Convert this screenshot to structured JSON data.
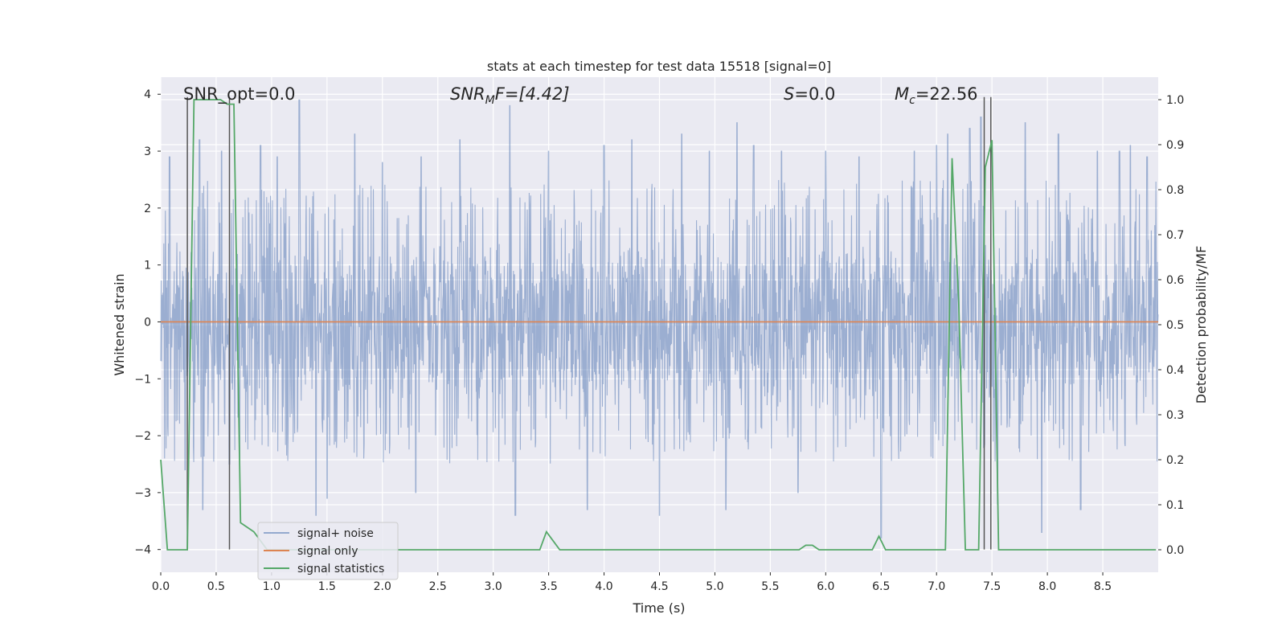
{
  "chart_data": {
    "type": "line",
    "title": "stats at each timestep for test data 15518 [signal=0]",
    "xlabel": "Time (s)",
    "ylabel_left": "Whitened strain",
    "ylabel_right": "Detection probability/MF",
    "xlim": [
      0,
      9
    ],
    "ylim_left": [
      -4.4,
      4.3
    ],
    "ylim_right": [
      -0.05,
      1.05
    ],
    "xticks": [
      0.0,
      0.5,
      1.0,
      1.5,
      2.0,
      2.5,
      3.0,
      3.5,
      4.0,
      4.5,
      5.0,
      5.5,
      6.0,
      6.5,
      7.0,
      7.5,
      8.0,
      8.5
    ],
    "xtick_labels": [
      "0.0",
      "0.5",
      "1.0",
      "1.5",
      "2.0",
      "2.5",
      "3.0",
      "3.5",
      "4.0",
      "4.5",
      "5.0",
      "5.5",
      "6.0",
      "6.5",
      "7.0",
      "7.5",
      "8.0",
      "8.5"
    ],
    "yticks_left": [
      4,
      3,
      2,
      1,
      0,
      -1,
      -2,
      -3,
      -4
    ],
    "ytick_labels_left": [
      "4",
      "3",
      "2",
      "1",
      "0",
      "−1",
      "−2",
      "−3",
      "−4"
    ],
    "yticks_right": [
      1.0,
      0.9,
      0.8,
      0.7,
      0.6,
      0.5,
      0.4,
      0.3,
      0.2,
      0.1,
      0.0
    ],
    "ytick_labels_right": [
      "1.0",
      "0.9",
      "0.8",
      "0.7",
      "0.6",
      "0.5",
      "0.4",
      "0.3",
      "0.2",
      "0.1",
      "0.0"
    ],
    "grid": true,
    "legend_position": "lower-left",
    "annotations": {
      "snr_opt": "SNR_opt=0.0",
      "snr_mf_prefix": "SNR",
      "snr_mf_sub": "M",
      "snr_mf_suffix": "F=[4.42]",
      "s_prefix": "S",
      "s_suffix": "=0.0",
      "mc_prefix": "M",
      "mc_sub": "c",
      "mc_suffix": "=22.56"
    },
    "colors": {
      "background": "#eaeaf2",
      "grid": "#ffffff",
      "noise": "#4c72b0",
      "signal_only": "#dd8452",
      "statistics": "#55a868",
      "markers": "#555555"
    },
    "series": [
      {
        "name": "signal+ noise",
        "axis": "left",
        "style": "dense noise trace",
        "noise_envelope_typical": [
          -1.6,
          1.6
        ],
        "peaks": [
          [
            0.08,
            2.9
          ],
          [
            0.22,
            -2.6
          ],
          [
            0.35,
            3.2
          ],
          [
            0.38,
            -3.3
          ],
          [
            0.55,
            3.0
          ],
          [
            0.62,
            -2.5
          ],
          [
            0.9,
            3.1
          ],
          [
            1.05,
            2.9
          ],
          [
            1.25,
            3.9
          ],
          [
            1.4,
            -3.4
          ],
          [
            1.5,
            -3.1
          ],
          [
            1.75,
            3.3
          ],
          [
            2.0,
            2.8
          ],
          [
            2.3,
            -3.0
          ],
          [
            2.35,
            2.9
          ],
          [
            2.7,
            3.2
          ],
          [
            3.15,
            3.8
          ],
          [
            3.2,
            -3.4
          ],
          [
            3.5,
            3.0
          ],
          [
            3.85,
            -3.3
          ],
          [
            4.0,
            3.1
          ],
          [
            4.25,
            3.2
          ],
          [
            4.5,
            -3.4
          ],
          [
            4.7,
            3.3
          ],
          [
            4.95,
            3.0
          ],
          [
            5.1,
            -3.3
          ],
          [
            5.2,
            3.5
          ],
          [
            5.35,
            3.1
          ],
          [
            5.6,
            3.0
          ],
          [
            5.75,
            -3.0
          ],
          [
            6.0,
            3.0
          ],
          [
            6.3,
            2.9
          ],
          [
            6.5,
            -3.8
          ],
          [
            6.8,
            3.0
          ],
          [
            7.0,
            3.1
          ],
          [
            7.1,
            3.3
          ],
          [
            7.3,
            3.4
          ],
          [
            7.4,
            3.6
          ],
          [
            7.55,
            -3.2
          ],
          [
            7.8,
            3.5
          ],
          [
            7.95,
            -3.7
          ],
          [
            8.1,
            3.3
          ],
          [
            8.3,
            -3.3
          ],
          [
            8.45,
            3.0
          ],
          [
            8.65,
            3.0
          ],
          [
            8.75,
            3.1
          ],
          [
            8.9,
            2.9
          ]
        ]
      },
      {
        "name": "signal only",
        "axis": "left",
        "x": [
          0.0,
          9.0
        ],
        "y": [
          0.0,
          0.0
        ]
      },
      {
        "name": "signal statistics",
        "axis": "right",
        "x": [
          0.0,
          0.06,
          0.12,
          0.18,
          0.24,
          0.3,
          0.36,
          0.42,
          0.48,
          0.54,
          0.6,
          0.66,
          0.72,
          0.78,
          0.84,
          0.9,
          0.96,
          1.02,
          3.36,
          3.42,
          3.48,
          3.54,
          3.6,
          3.66,
          5.76,
          5.82,
          5.88,
          5.94,
          6.42,
          6.48,
          6.54,
          6.6,
          7.08,
          7.14,
          7.2,
          7.26,
          7.32,
          7.38,
          7.44,
          7.5,
          7.56,
          7.62,
          8.98
        ],
        "y": [
          0.2,
          0.0,
          0.0,
          0.0,
          0.0,
          1.0,
          1.0,
          1.0,
          1.0,
          1.0,
          0.99,
          0.99,
          0.06,
          0.05,
          0.04,
          0.02,
          0.0,
          0.0,
          0.0,
          0.0,
          0.04,
          0.02,
          0.0,
          0.0,
          0.0,
          0.01,
          0.01,
          0.0,
          0.0,
          0.03,
          0.0,
          0.0,
          0.0,
          0.87,
          0.55,
          0.0,
          0.0,
          0.0,
          0.85,
          0.91,
          0.0,
          0.0,
          0.0
        ]
      }
    ],
    "marker_lines_x": [
      0.24,
      0.62,
      7.43,
      7.49
    ]
  }
}
